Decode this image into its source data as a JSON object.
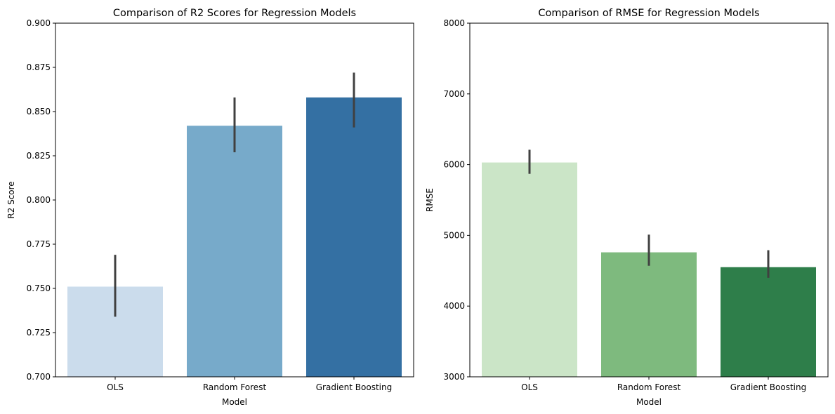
{
  "chart_data": [
    {
      "type": "bar",
      "title": "Comparison of R2 Scores for Regression Models",
      "xlabel": "Model",
      "ylabel": "R2 Score",
      "categories": [
        "OLS",
        "Random Forest",
        "Gradient Boosting"
      ],
      "values": [
        0.751,
        0.842,
        0.858
      ],
      "error_low": [
        0.734,
        0.827,
        0.841
      ],
      "error_high": [
        0.769,
        0.858,
        0.872
      ],
      "ylim": [
        0.7,
        0.9
      ],
      "yticks": [
        "0.700",
        "0.725",
        "0.750",
        "0.775",
        "0.800",
        "0.825",
        "0.850",
        "0.875",
        "0.900"
      ],
      "ytick_values": [
        0.7,
        0.725,
        0.75,
        0.775,
        0.8,
        0.825,
        0.85,
        0.875,
        0.9
      ],
      "colors": [
        "#cbdcec",
        "#77aaca",
        "#3470a3"
      ],
      "errorbar_color": "#404040",
      "grid": false
    },
    {
      "type": "bar",
      "title": "Comparison of RMSE for Regression Models",
      "xlabel": "Model",
      "ylabel": "RMSE",
      "categories": [
        "OLS",
        "Random Forest",
        "Gradient Boosting"
      ],
      "values": [
        6030,
        4760,
        4550
      ],
      "error_low": [
        5870,
        4570,
        4400
      ],
      "error_high": [
        6210,
        5010,
        4790
      ],
      "ylim": [
        3000,
        8000
      ],
      "yticks": [
        "3000",
        "4000",
        "5000",
        "6000",
        "7000",
        "8000"
      ],
      "ytick_values": [
        3000,
        4000,
        5000,
        6000,
        7000,
        8000
      ],
      "colors": [
        "#cbe5c7",
        "#7eba7e",
        "#2e7e4a"
      ],
      "errorbar_color": "#404040",
      "grid": false
    }
  ]
}
